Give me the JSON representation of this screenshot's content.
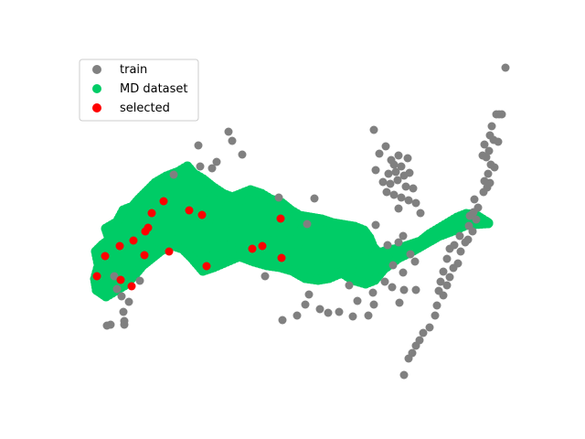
{
  "chart_data": {
    "type": "scatter",
    "title": "",
    "xlabel": "",
    "ylabel": "",
    "axes_visible": false,
    "grid": false,
    "legend_position": "upper-left",
    "series": [
      {
        "name": "train",
        "color": "#808080",
        "points": [
          [
            553,
            74
          ],
          [
            549,
            125
          ],
          [
            546,
            125
          ],
          [
            543,
            125
          ],
          [
            538,
            138
          ],
          [
            536,
            148
          ],
          [
            540,
            153
          ],
          [
            545,
            155
          ],
          [
            530,
            158
          ],
          [
            535,
            165
          ],
          [
            528,
            170
          ],
          [
            532,
            172
          ],
          [
            537,
            180
          ],
          [
            541,
            183
          ],
          [
            534,
            190
          ],
          [
            530,
            198
          ],
          [
            536,
            200
          ],
          [
            533,
            205
          ],
          [
            529,
            210
          ],
          [
            519,
            218
          ],
          [
            523,
            227
          ],
          [
            518,
            232
          ],
          [
            514,
            236
          ],
          [
            521,
            240
          ],
          [
            513,
            247
          ],
          [
            517,
            253
          ],
          [
            503,
            258
          ],
          [
            512,
            262
          ],
          [
            509,
            265
          ],
          [
            497,
            268
          ],
          [
            492,
            272
          ],
          [
            504,
            275
          ],
          [
            489,
            283
          ],
          [
            501,
            288
          ],
          [
            496,
            293
          ],
          [
            485,
            297
          ],
          [
            492,
            303
          ],
          [
            482,
            308
          ],
          [
            489,
            312
          ],
          [
            480,
            318
          ],
          [
            485,
            323
          ],
          [
            478,
            334
          ],
          [
            476,
            345
          ],
          [
            470,
            358
          ],
          [
            463,
            364
          ],
          [
            459,
            372
          ],
          [
            455,
            378
          ],
          [
            451,
            386
          ],
          [
            447,
            392
          ],
          [
            442,
            410
          ],
          [
            250,
            144
          ],
          [
            254,
            154
          ],
          [
            265,
            169
          ],
          [
            217,
            159
          ],
          [
            237,
            177
          ],
          [
            219,
            182
          ],
          [
            232,
            184
          ],
          [
            190,
            191
          ],
          [
            409,
            142
          ],
          [
            422,
            160
          ],
          [
            415,
            168
          ],
          [
            436,
            170
          ],
          [
            428,
            175
          ],
          [
            446,
            173
          ],
          [
            431,
            180
          ],
          [
            439,
            182
          ],
          [
            411,
            186
          ],
          [
            425,
            190
          ],
          [
            433,
            188
          ],
          [
            442,
            192
          ],
          [
            448,
            189
          ],
          [
            419,
            199
          ],
          [
            427,
            201
          ],
          [
            435,
            197
          ],
          [
            444,
            204
          ],
          [
            452,
            206
          ],
          [
            423,
            210
          ],
          [
            431,
            213
          ],
          [
            439,
            216
          ],
          [
            447,
            219
          ],
          [
            455,
            222
          ],
          [
            436,
            228
          ],
          [
            460,
            233
          ],
          [
            411,
            246
          ],
          [
            441,
            258
          ],
          [
            436,
            265
          ],
          [
            424,
            268
          ],
          [
            449,
            278
          ],
          [
            454,
            286
          ],
          [
            430,
            290
          ],
          [
            441,
            298
          ],
          [
            421,
            308
          ],
          [
            429,
            314
          ],
          [
            442,
            317
          ],
          [
            455,
            317
          ],
          [
            408,
            320
          ],
          [
            391,
            329
          ],
          [
            409,
            333
          ],
          [
            437,
            331
          ],
          [
            403,
            345
          ],
          [
            386,
            346
          ],
          [
            371,
            341
          ],
          [
            359,
            342
          ],
          [
            350,
            338
          ],
          [
            334,
            333
          ],
          [
            338,
            322
          ],
          [
            325,
            345
          ],
          [
            309,
            350
          ],
          [
            290,
            302
          ],
          [
            344,
            217
          ],
          [
            305,
            216
          ],
          [
            336,
            245
          ],
          [
            382,
            312
          ],
          [
            153,
            307
          ],
          [
            141,
            330
          ],
          [
            133,
            324
          ],
          [
            128,
            316
          ],
          [
            135,
            341
          ],
          [
            136,
            351
          ],
          [
            136,
            355
          ],
          [
            117,
            356
          ],
          [
            121,
            355
          ],
          [
            125,
            302
          ]
        ]
      },
      {
        "name": "MD dataset",
        "color": "#00cc66",
        "path": [
          [
            106,
            317
          ],
          [
            104,
            305
          ],
          [
            108,
            290
          ],
          [
            105,
            275
          ],
          [
            112,
            268
          ],
          [
            120,
            262
          ],
          [
            116,
            250
          ],
          [
            128,
            243
          ],
          [
            135,
            230
          ],
          [
            145,
            226
          ],
          [
            152,
            218
          ],
          [
            162,
            208
          ],
          [
            170,
            200
          ],
          [
            182,
            193
          ],
          [
            195,
            188
          ],
          [
            205,
            182
          ],
          [
            212,
            190
          ],
          [
            222,
            196
          ],
          [
            232,
            204
          ],
          [
            244,
            212
          ],
          [
            254,
            216
          ],
          [
            264,
            212
          ],
          [
            274,
            208
          ],
          [
            286,
            212
          ],
          [
            296,
            218
          ],
          [
            308,
            222
          ],
          [
            318,
            230
          ],
          [
            328,
            236
          ],
          [
            340,
            238
          ],
          [
            352,
            240
          ],
          [
            364,
            244
          ],
          [
            376,
            246
          ],
          [
            388,
            248
          ],
          [
            398,
            252
          ],
          [
            404,
            260
          ],
          [
            408,
            270
          ],
          [
            414,
            277
          ],
          [
            424,
            274
          ],
          [
            436,
            272
          ],
          [
            448,
            268
          ],
          [
            460,
            264
          ],
          [
            470,
            256
          ],
          [
            480,
            250
          ],
          [
            490,
            244
          ],
          [
            500,
            238
          ],
          [
            510,
            234
          ],
          [
            520,
            235
          ],
          [
            528,
            240
          ],
          [
            534,
            244
          ]
        ],
        "path_lower": [
          [
            534,
            244
          ],
          [
            520,
            245
          ],
          [
            510,
            246
          ],
          [
            496,
            252
          ],
          [
            480,
            258
          ],
          [
            466,
            266
          ],
          [
            452,
            274
          ],
          [
            436,
            282
          ],
          [
            420,
            294
          ],
          [
            410,
            306
          ],
          [
            400,
            310
          ],
          [
            386,
            306
          ],
          [
            374,
            298
          ],
          [
            360,
            304
          ],
          [
            348,
            306
          ],
          [
            334,
            304
          ],
          [
            320,
            296
          ],
          [
            306,
            292
          ],
          [
            292,
            290
          ],
          [
            278,
            286
          ],
          [
            262,
            280
          ],
          [
            248,
            286
          ],
          [
            234,
            292
          ],
          [
            222,
            296
          ],
          [
            210,
            282
          ],
          [
            200,
            272
          ],
          [
            188,
            268
          ],
          [
            176,
            274
          ],
          [
            166,
            282
          ],
          [
            156,
            290
          ],
          [
            146,
            302
          ],
          [
            136,
            312
          ],
          [
            126,
            318
          ],
          [
            116,
            324
          ],
          [
            106,
            317
          ]
        ]
      },
      {
        "name": "selected",
        "color": "#ff0000",
        "points": [
          [
            106,
            302
          ],
          [
            115,
            280
          ],
          [
            131,
            269
          ],
          [
            132,
            306
          ],
          [
            144,
            313
          ],
          [
            146,
            263
          ],
          [
            158,
            279
          ],
          [
            159,
            253
          ],
          [
            162,
            249
          ],
          [
            166,
            233
          ],
          [
            179,
            220
          ],
          [
            185,
            275
          ],
          [
            207,
            230
          ],
          [
            221,
            235
          ],
          [
            226,
            291
          ],
          [
            276,
            272
          ],
          [
            287,
            269
          ],
          [
            307,
            239
          ],
          [
            308,
            282
          ]
        ]
      }
    ]
  }
}
